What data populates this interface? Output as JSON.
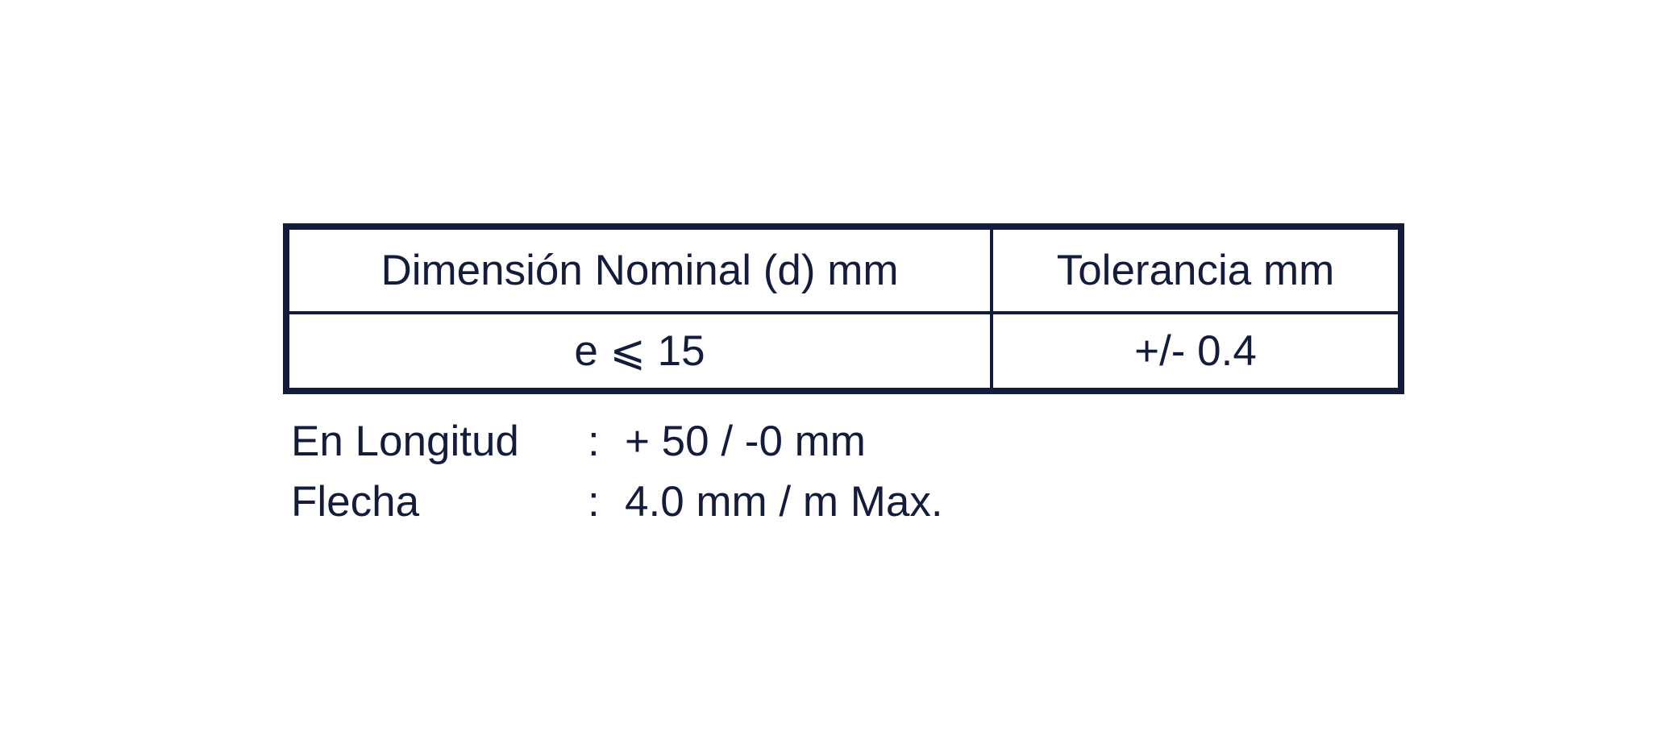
{
  "table": {
    "headers": [
      "Dimensión Nominal (d) mm",
      "Tolerancia mm"
    ],
    "rows": [
      [
        "e ⩽ 15",
        "+/- 0.4"
      ]
    ]
  },
  "specs": [
    {
      "label": "En Longitud",
      "separator": ":",
      "value": "+ 50 / -0 mm"
    },
    {
      "label": "Flecha",
      "separator": ":",
      "value": "4.0 mm / m Max."
    }
  ]
}
